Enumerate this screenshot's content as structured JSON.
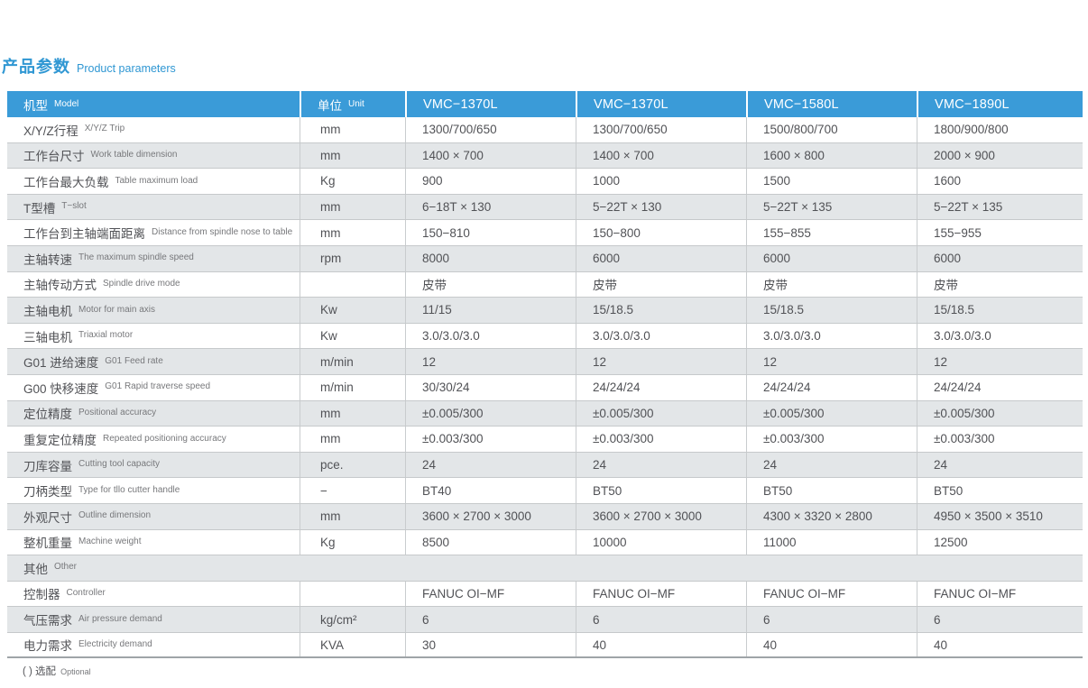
{
  "title": {
    "zh": "产品参数",
    "en": "Product parameters"
  },
  "footnote": {
    "zh": "( ) 选配",
    "en": "Optional"
  },
  "colors": {
    "accent_blue": "#3a9bd8",
    "row_gray": "#e3e6e8",
    "text_dark": "#515256"
  },
  "table": {
    "header": {
      "model_zh": "机型",
      "model_en": "Model",
      "unit_zh": "单位",
      "unit_en": "Unit",
      "models": [
        "VMC−1370L",
        "VMC−1370L",
        "VMC−1580L",
        "VMC−1890L"
      ]
    },
    "rows": [
      {
        "zh": "X/Y/Z行程",
        "en": "X/Y/Z Trip",
        "unit": "mm",
        "values": [
          "1300/700/650",
          "1300/700/650",
          "1500/800/700",
          "1800/900/800"
        ]
      },
      {
        "zh": "工作台尺寸",
        "en": "Work table dimension",
        "unit": "mm",
        "values": [
          "1400 × 700",
          "1400 × 700",
          "1600 × 800",
          "2000 × 900"
        ]
      },
      {
        "zh": "工作台最大负载",
        "en": "Table maximum load",
        "unit": "Kg",
        "values": [
          "900",
          "1000",
          "1500",
          "1600"
        ]
      },
      {
        "zh": "T型槽",
        "en": "T−slot",
        "unit": "mm",
        "values": [
          "6−18T × 130",
          "5−22T × 130",
          "5−22T × 135",
          "5−22T × 135"
        ]
      },
      {
        "zh": "工作台到主轴端面距离",
        "en": "Distance from spindle nose to table",
        "unit": "mm",
        "values": [
          "150−810",
          "150−800",
          "155−855",
          "155−955"
        ]
      },
      {
        "zh": "主轴转速",
        "en": "The maximum spindle speed",
        "unit": "rpm",
        "values": [
          "8000",
          "6000",
          "6000",
          "6000"
        ]
      },
      {
        "zh": "主轴传动方式",
        "en": "Spindle drive mode",
        "unit": "",
        "values": [
          "皮带",
          "皮带",
          "皮带",
          "皮带"
        ]
      },
      {
        "zh": "主轴电机",
        "en": "Motor for main axis",
        "unit": "Kw",
        "values": [
          "11/15",
          "15/18.5",
          "15/18.5",
          "15/18.5"
        ]
      },
      {
        "zh": "三轴电机",
        "en": "Triaxial motor",
        "unit": "Kw",
        "values": [
          "3.0/3.0/3.0",
          "3.0/3.0/3.0",
          "3.0/3.0/3.0",
          "3.0/3.0/3.0"
        ]
      },
      {
        "zh": "G01 进给速度",
        "en": "G01 Feed rate",
        "unit": "m/min",
        "values": [
          "12",
          "12",
          "12",
          "12"
        ]
      },
      {
        "zh": "G00 快移速度",
        "en": "G01 Rapid traverse speed",
        "unit": "m/min",
        "values": [
          "30/30/24",
          "24/24/24",
          "24/24/24",
          "24/24/24"
        ]
      },
      {
        "zh": "定位精度",
        "en": "Positional accuracy",
        "unit": "mm",
        "values": [
          "±0.005/300",
          "±0.005/300",
          "±0.005/300",
          "±0.005/300"
        ]
      },
      {
        "zh": "重复定位精度",
        "en": "Repeated positioning accuracy",
        "unit": "mm",
        "values": [
          "±0.003/300",
          "±0.003/300",
          "±0.003/300",
          "±0.003/300"
        ]
      },
      {
        "zh": "刀库容量",
        "en": "Cutting tool capacity",
        "unit": "pce.",
        "values": [
          "24",
          "24",
          "24",
          "24"
        ]
      },
      {
        "zh": "刀柄类型",
        "en": "Type for tllo cutter handle",
        "unit": "−",
        "values": [
          "BT40",
          "BT50",
          "BT50",
          "BT50"
        ]
      },
      {
        "zh": "外观尺寸",
        "en": "Outline dimension",
        "unit": "mm",
        "values": [
          "3600 × 2700 × 3000",
          "3600 × 2700 × 3000",
          "4300 × 3320 × 2800",
          "4950 × 3500 × 3510"
        ]
      },
      {
        "zh": "整机重量",
        "en": "Machine weight",
        "unit": "Kg",
        "values": [
          "8500",
          "10000",
          "11000",
          "12500"
        ]
      },
      {
        "zh": "其他",
        "en": "Other",
        "section": true
      },
      {
        "zh": "控制器",
        "en": "Controller",
        "unit": "",
        "values": [
          "FANUC OI−MF",
          "FANUC OI−MF",
          "FANUC OI−MF",
          "FANUC OI−MF"
        ]
      },
      {
        "zh": "气压需求",
        "en": "Air pressure demand",
        "unit": "kg/cm²",
        "values": [
          "6",
          "6",
          "6",
          "6"
        ]
      },
      {
        "zh": "电力需求",
        "en": "Electricity demand",
        "unit": "KVA",
        "values": [
          "30",
          "40",
          "40",
          "40"
        ]
      }
    ]
  }
}
